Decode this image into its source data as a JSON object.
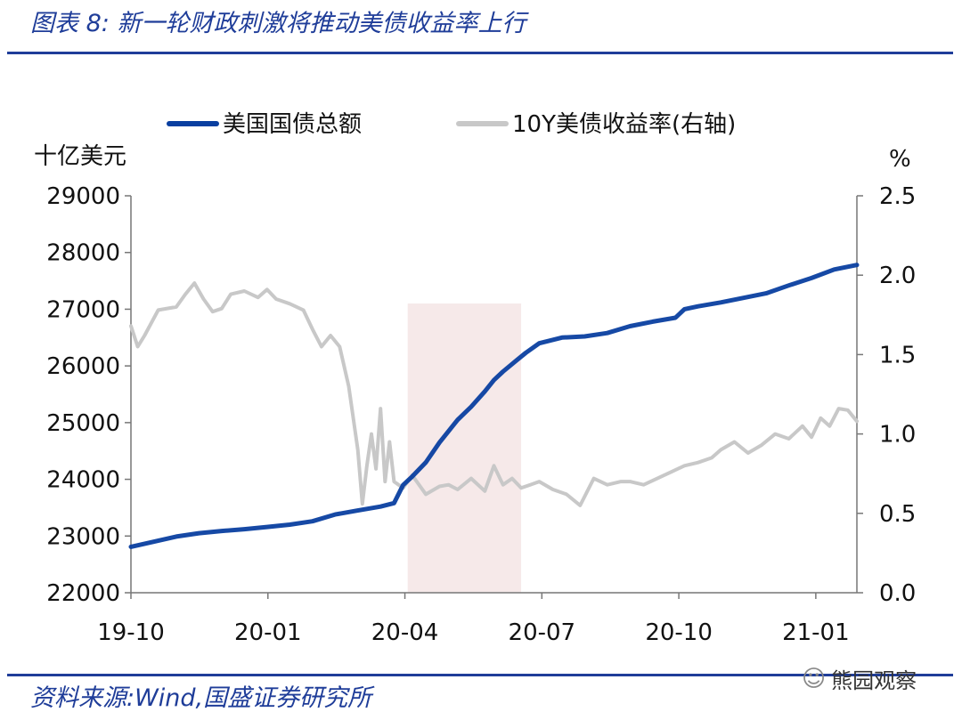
{
  "header": {
    "title": "图表 8:  新一轮财政刺激将推动美债收益率上行"
  },
  "footer": {
    "source": "资料来源:Wind,国盛证券研究所",
    "watermark_text": "熊园观察",
    "watermark_icon": "wechat-icon"
  },
  "colors": {
    "debt_line": "#0a3fa0",
    "yield_line": "#c8c8c8",
    "highlight_band": "#f6e9e9",
    "brand": "#1f3d99"
  },
  "chart_data": {
    "type": "line",
    "left_unit": "十亿美元",
    "right_unit": "%",
    "x_ticks": [
      "19-10",
      "20-01",
      "20-04",
      "20-07",
      "20-10",
      "21-01"
    ],
    "x_range": [
      0,
      16
    ],
    "left_ylim": [
      22000,
      29000
    ],
    "left_ticks": [
      "22000",
      "23000",
      "24000",
      "25000",
      "26000",
      "27000",
      "28000",
      "29000"
    ],
    "right_ylim": [
      0.0,
      2.5
    ],
    "right_ticks": [
      "0.0",
      "0.5",
      "1.0",
      "1.5",
      "2.0",
      "2.5"
    ],
    "legend_position": "top",
    "highlight_period": {
      "from": 6.1,
      "to": 8.6,
      "y_top": 27100
    },
    "series": [
      {
        "name": "美国国债总额",
        "axis": "left",
        "x": [
          0,
          0.5,
          1,
          1.5,
          2,
          2.5,
          3,
          3.5,
          4,
          4.5,
          5,
          5.5,
          5.8,
          6,
          6.2,
          6.5,
          6.8,
          7,
          7.2,
          7.5,
          7.8,
          8,
          8.2,
          8.5,
          8.7,
          9,
          9.5,
          10,
          10.5,
          11,
          11.5,
          12,
          12.2,
          12.5,
          13,
          13.5,
          14,
          14.5,
          15,
          15.5,
          16
        ],
        "values": [
          22810,
          22900,
          22990,
          23050,
          23090,
          23120,
          23160,
          23200,
          23260,
          23380,
          23450,
          23520,
          23580,
          23900,
          24050,
          24300,
          24650,
          24850,
          25050,
          25280,
          25550,
          25750,
          25900,
          26100,
          26230,
          26400,
          26500,
          26520,
          26580,
          26700,
          26780,
          26850,
          27000,
          27050,
          27120,
          27200,
          27280,
          27420,
          27550,
          27700,
          27780
        ]
      },
      {
        "name": "10Y美债收益率(右轴)",
        "axis": "right",
        "x": [
          0,
          0.15,
          0.3,
          0.6,
          1,
          1.2,
          1.4,
          1.6,
          1.8,
          2,
          2.2,
          2.5,
          2.8,
          3,
          3.2,
          3.5,
          3.8,
          4,
          4.2,
          4.4,
          4.6,
          4.8,
          5,
          5.1,
          5.2,
          5.3,
          5.4,
          5.5,
          5.6,
          5.7,
          5.8,
          5.9,
          6,
          6.2,
          6.5,
          6.8,
          7,
          7.2,
          7.5,
          7.8,
          8,
          8.2,
          8.4,
          8.6,
          8.8,
          9,
          9.3,
          9.6,
          9.9,
          10.2,
          10.5,
          10.8,
          11,
          11.3,
          11.6,
          11.9,
          12.2,
          12.5,
          12.8,
          13,
          13.3,
          13.6,
          13.9,
          14.2,
          14.5,
          14.8,
          15,
          15.2,
          15.4,
          15.6,
          15.8,
          16
        ],
        "values": [
          1.68,
          1.55,
          1.62,
          1.78,
          1.8,
          1.88,
          1.95,
          1.85,
          1.77,
          1.79,
          1.88,
          1.9,
          1.86,
          1.91,
          1.85,
          1.82,
          1.78,
          1.66,
          1.55,
          1.62,
          1.55,
          1.3,
          0.9,
          0.56,
          0.8,
          1.0,
          0.78,
          1.16,
          0.7,
          0.95,
          0.7,
          0.68,
          0.66,
          0.74,
          0.62,
          0.67,
          0.68,
          0.65,
          0.72,
          0.64,
          0.8,
          0.68,
          0.72,
          0.66,
          0.68,
          0.7,
          0.65,
          0.62,
          0.55,
          0.72,
          0.68,
          0.7,
          0.7,
          0.68,
          0.72,
          0.76,
          0.8,
          0.82,
          0.85,
          0.9,
          0.95,
          0.88,
          0.93,
          1.0,
          0.97,
          1.05,
          0.98,
          1.1,
          1.05,
          1.16,
          1.15,
          1.08
        ]
      }
    ]
  }
}
